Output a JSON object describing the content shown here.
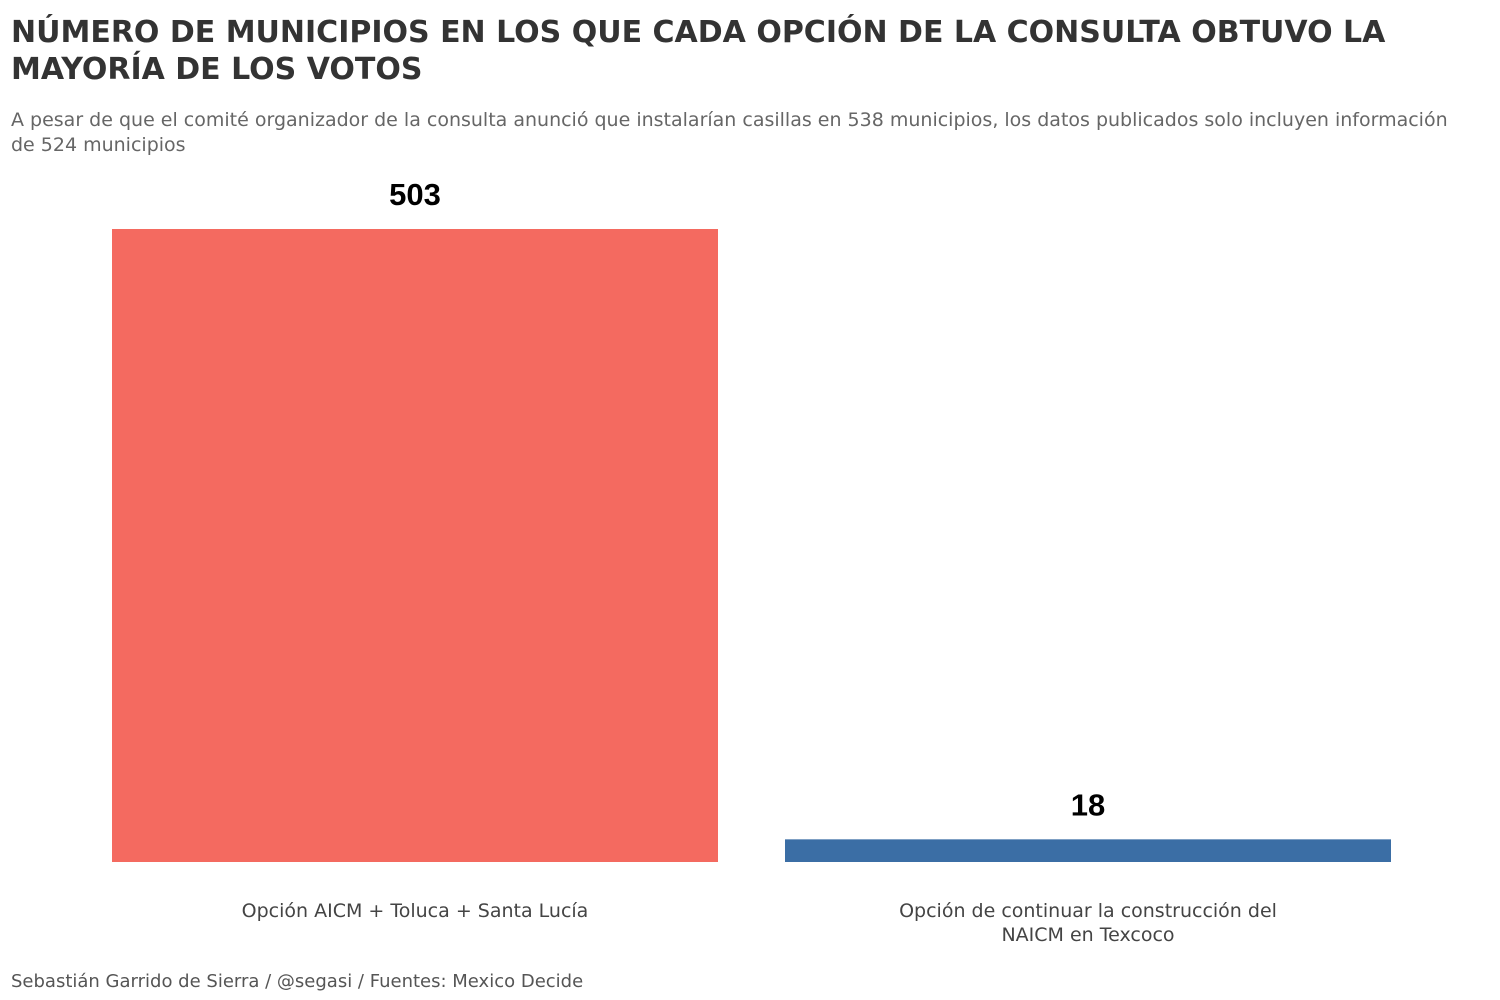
{
  "title": "NÚMERO DE MUNICIPIOS EN LOS QUE CADA OPCIÓN DE LA CONSULTA OBTUVO LA MAYORÍA DE LOS VOTOS",
  "subtitle": "A pesar de que el comité organizador de la consulta anunció que instalarían casillas en 538 municipios, los datos publicados solo incluyen información de 524 municipios",
  "caption": "Sebastián Garrido de Sierra / @segasi / Fuentes: Mexico Decide",
  "chart_data": {
    "type": "bar",
    "title": "NÚMERO DE MUNICIPIOS EN LOS QUE CADA OPCIÓN DE LA CONSULTA OBTUVO LA MAYORÍA DE LOS VOTOS",
    "subtitle": "A pesar de que el comité organizador de la consulta anunció que instalarían casillas en 538 municipios, los datos publicados solo incluyen información de 524 municipios",
    "categories": [
      [
        "Opción AICM + Toluca + Santa Lucía"
      ],
      [
        "Opción de continuar la construcción del",
        "NAICM en Texcoco"
      ]
    ],
    "values": [
      503,
      18
    ],
    "data_labels": [
      "503",
      "18"
    ],
    "colors": [
      "#F46A60",
      "#3B6EA5"
    ],
    "ylim": [
      0,
      503
    ],
    "xlabel": "",
    "ylabel": "",
    "grid": false,
    "legend": "none"
  }
}
